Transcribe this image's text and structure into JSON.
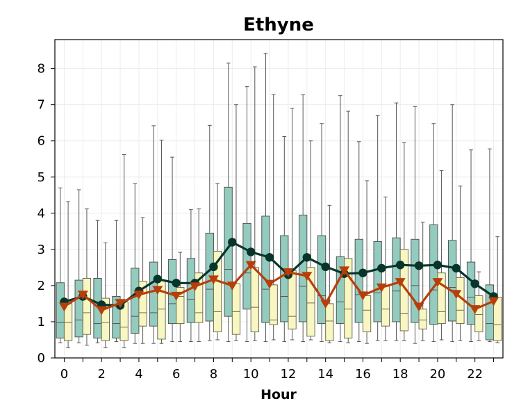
{
  "chart_data": {
    "type": "boxplot",
    "title": "Ethyne",
    "xlabel": "Hour",
    "ylabel": "",
    "xlim": [
      -0.5,
      23.5
    ],
    "ylim": [
      0,
      8.8
    ],
    "xticks": [
      0,
      2,
      4,
      6,
      8,
      10,
      12,
      14,
      16,
      18,
      20,
      22
    ],
    "yticks": [
      0,
      1,
      2,
      3,
      4,
      5,
      6,
      7,
      8
    ],
    "grid": true,
    "colors": {
      "box_a": "#93cbbe",
      "box_b": "#f8f6c2",
      "mean_a": "#07352b",
      "mean_b": "#b73e0a",
      "whisker": "#555555"
    },
    "series": [
      {
        "marker": "circle",
        "boxes": [
          [
            0.42,
            0.55,
            0.98,
            2.08,
            4.7
          ],
          [
            0.42,
            0.58,
            1.05,
            2.15,
            4.65
          ],
          [
            0.42,
            0.55,
            0.95,
            2.2,
            3.8
          ],
          [
            0.45,
            0.55,
            0.95,
            1.7,
            3.8
          ],
          [
            0.4,
            0.68,
            1.15,
            2.48,
            4.82
          ],
          [
            0.4,
            0.88,
            1.25,
            2.65,
            6.42
          ],
          [
            0.45,
            0.95,
            1.5,
            2.72,
            5.55
          ],
          [
            0.45,
            0.98,
            1.62,
            2.75,
            4.1
          ],
          [
            0.48,
            1.02,
            1.9,
            3.45,
            6.43
          ],
          [
            0.45,
            1.15,
            2.45,
            4.72,
            8.15
          ],
          [
            0.45,
            1.35,
            2.35,
            3.72,
            7.5
          ],
          [
            0.45,
            0.98,
            1.9,
            3.92,
            8.42
          ],
          [
            0.45,
            1.0,
            1.7,
            3.38,
            6.12
          ],
          [
            0.45,
            1.0,
            1.98,
            3.95,
            7.28
          ],
          [
            0.45,
            0.95,
            1.72,
            3.38,
            6.48
          ],
          [
            0.45,
            0.95,
            1.55,
            2.8,
            7.25
          ],
          [
            0.45,
            0.98,
            1.75,
            3.28,
            5.98
          ],
          [
            0.48,
            1.0,
            1.8,
            3.22,
            6.7
          ],
          [
            0.48,
            1.0,
            1.85,
            3.32,
            7.05
          ],
          [
            0.4,
            0.98,
            2.0,
            3.28,
            6.95
          ],
          [
            0.45,
            0.93,
            1.88,
            3.68,
            6.48
          ],
          [
            0.45,
            1.02,
            1.95,
            3.25,
            7.0
          ],
          [
            0.45,
            0.93,
            1.68,
            2.65,
            5.75
          ],
          [
            0.45,
            0.5,
            0.95,
            2.02,
            5.78
          ]
        ],
        "means": [
          1.55,
          1.7,
          1.47,
          1.45,
          1.85,
          2.18,
          2.07,
          2.07,
          2.52,
          3.2,
          2.93,
          2.78,
          2.3,
          2.78,
          2.52,
          2.33,
          2.35,
          2.48,
          2.57,
          2.55,
          2.57,
          2.48,
          2.05,
          1.7
        ]
      },
      {
        "marker": "triangle-down",
        "boxes": [
          [
            0.28,
            0.48,
            0.98,
            1.5,
            4.32
          ],
          [
            0.35,
            0.65,
            1.25,
            2.2,
            4.12
          ],
          [
            0.28,
            0.48,
            0.98,
            1.65,
            3.18
          ],
          [
            0.28,
            0.48,
            0.85,
            1.55,
            5.62
          ],
          [
            0.4,
            0.88,
            1.25,
            2.12,
            3.88
          ],
          [
            0.4,
            0.52,
            1.35,
            2.15,
            6.02
          ],
          [
            0.45,
            0.95,
            1.7,
            1.95,
            2.92
          ],
          [
            0.45,
            0.98,
            1.25,
            2.35,
            4.12
          ],
          [
            0.5,
            0.72,
            1.28,
            2.95,
            4.82
          ],
          [
            0.48,
            0.65,
            1.28,
            2.05,
            7.0
          ],
          [
            0.48,
            0.72,
            1.4,
            2.5,
            8.05
          ],
          [
            0.5,
            0.92,
            1.05,
            2.02,
            7.28
          ],
          [
            0.5,
            0.8,
            1.15,
            2.42,
            6.9
          ],
          [
            0.5,
            0.6,
            1.52,
            2.5,
            6.0
          ],
          [
            0.42,
            0.48,
            1.02,
            1.5,
            4.22
          ],
          [
            0.42,
            0.55,
            1.35,
            2.75,
            6.82
          ],
          [
            0.4,
            0.72,
            1.32,
            1.72,
            4.9
          ],
          [
            0.48,
            0.88,
            1.35,
            1.98,
            4.45
          ],
          [
            0.48,
            0.75,
            1.22,
            3.0,
            5.95
          ],
          [
            0.48,
            0.8,
            1.05,
            1.35,
            3.75
          ],
          [
            0.5,
            0.95,
            1.28,
            2.35,
            5.18
          ],
          [
            0.48,
            0.95,
            1.32,
            2.22,
            4.75
          ],
          [
            0.48,
            0.72,
            1.2,
            1.72,
            2.38
          ],
          [
            0.42,
            0.48,
            0.92,
            1.68,
            3.35
          ]
        ],
        "means": [
          1.42,
          1.75,
          1.32,
          1.52,
          1.75,
          1.88,
          1.72,
          1.98,
          2.17,
          2.0,
          2.57,
          2.05,
          2.37,
          2.27,
          1.5,
          2.42,
          1.73,
          1.95,
          2.1,
          1.42,
          2.1,
          1.77,
          1.35,
          1.57
        ]
      }
    ]
  }
}
